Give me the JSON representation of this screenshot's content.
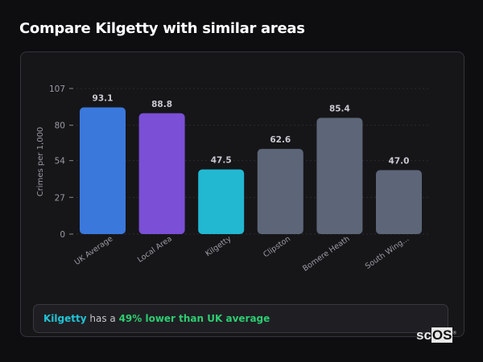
{
  "title": "Compare Kilgetty with similar areas",
  "chart_data": {
    "type": "bar",
    "ylabel": "Crimes per 1,000",
    "xlabel": "",
    "ylim": [
      0,
      107
    ],
    "yticks": [
      0,
      27,
      54,
      80,
      107
    ],
    "grid": true,
    "categories": [
      "UK Average",
      "Local Area",
      "Kilgetty",
      "Clipston",
      "Bomere Heath",
      "South Wing..."
    ],
    "values": [
      93.1,
      88.8,
      47.5,
      62.6,
      85.4,
      47.0
    ],
    "value_labels": [
      "93.1",
      "88.8",
      "47.5",
      "62.6",
      "85.4",
      "47.0"
    ],
    "colors": [
      "#3a78dc",
      "#7b4fd6",
      "#22b8d2",
      "#5c6678",
      "#5c6678",
      "#5c6678"
    ]
  },
  "summary": {
    "area": "Kilgetty",
    "middle": " has a ",
    "comparison": "49% lower than UK average"
  },
  "logo": {
    "text_a": "sc",
    "text_b": "OS",
    "mark": "®"
  }
}
